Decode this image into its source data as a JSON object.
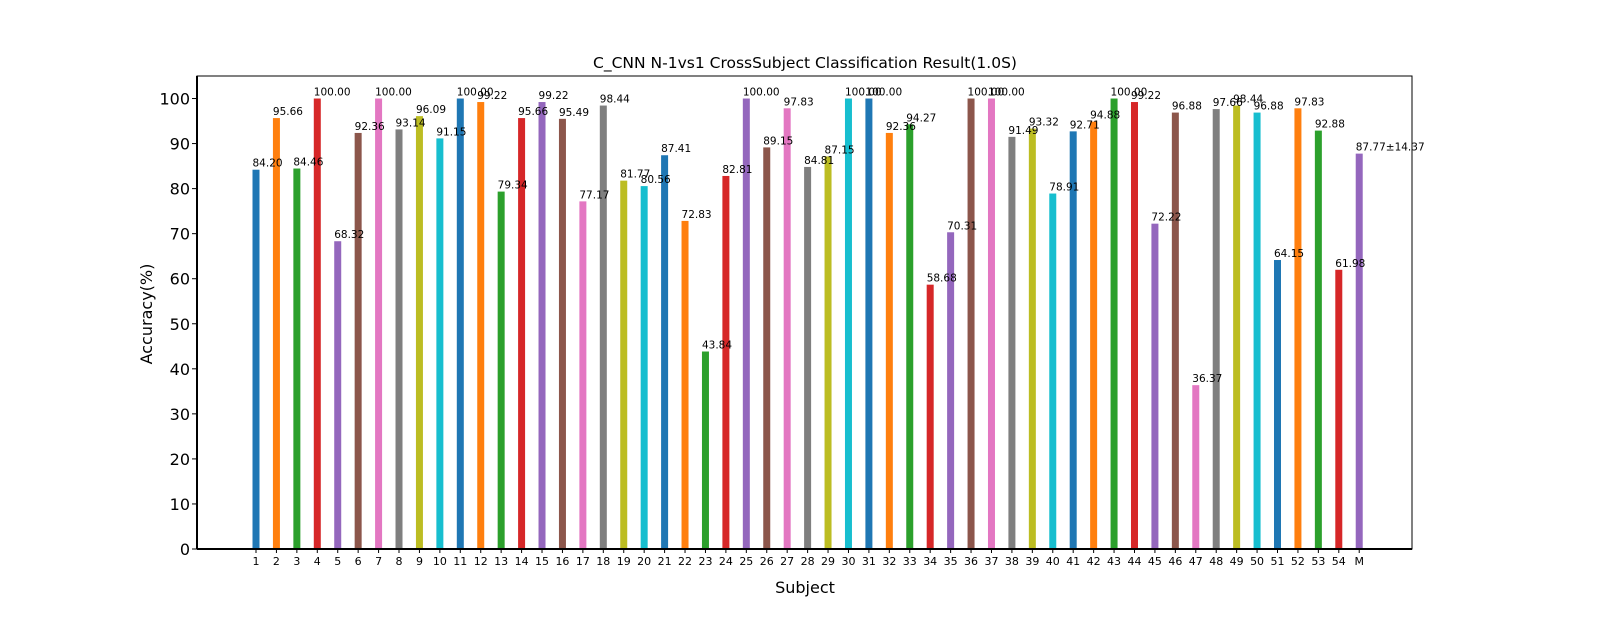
{
  "chart_data": {
    "type": "bar",
    "title": "C_CNN N-1vs1 CrossSubject Classification Result(1.0S)",
    "xlabel": "Subject",
    "ylabel": "Accuracy(%)",
    "ylim": [
      0,
      105
    ],
    "yticks": [
      "0",
      "10",
      "20",
      "30",
      "40",
      "50",
      "60",
      "70",
      "80",
      "90",
      "100"
    ],
    "grid": false,
    "categories": [
      "1",
      "2",
      "3",
      "4",
      "5",
      "6",
      "7",
      "8",
      "9",
      "10",
      "11",
      "12",
      "13",
      "14",
      "15",
      "16",
      "17",
      "18",
      "19",
      "20",
      "21",
      "22",
      "23",
      "24",
      "25",
      "26",
      "27",
      "28",
      "29",
      "30",
      "31",
      "32",
      "33",
      "34",
      "35",
      "36",
      "37",
      "38",
      "39",
      "40",
      "41",
      "42",
      "43",
      "44",
      "45",
      "46",
      "47",
      "48",
      "49",
      "50",
      "51",
      "52",
      "53",
      "54",
      "M"
    ],
    "values": [
      84.2,
      95.66,
      84.46,
      100.0,
      68.32,
      92.36,
      100.0,
      93.14,
      96.09,
      91.15,
      100.0,
      99.22,
      79.34,
      95.66,
      99.22,
      95.49,
      77.17,
      98.44,
      81.77,
      80.56,
      87.41,
      72.83,
      43.84,
      82.81,
      100.0,
      89.15,
      97.83,
      84.81,
      87.15,
      100.0,
      100.0,
      92.36,
      94.27,
      58.68,
      70.31,
      100.0,
      100.0,
      91.49,
      93.32,
      78.91,
      92.71,
      94.88,
      100.0,
      99.22,
      72.22,
      96.88,
      36.37,
      97.66,
      98.44,
      96.88,
      64.15,
      97.83,
      92.88,
      61.98,
      87.77
    ],
    "data_labels": [
      "84.20",
      "95.66",
      "84.46",
      "100.00",
      "68.32",
      "92.36",
      "100.00",
      "93.14",
      "96.09",
      "91.15",
      "100.00",
      "99.22",
      "79.34",
      "95.66",
      "99.22",
      "95.49",
      "77.17",
      "98.44",
      "81.77",
      "80.56",
      "87.41",
      "72.83",
      "43.84",
      "82.81",
      "100.00",
      "89.15",
      "97.83",
      "84.81",
      "87.15",
      "100.00",
      "100.00",
      "92.36",
      "94.27",
      "58.68",
      "70.31",
      "100.00",
      "100.00",
      "91.49",
      "93.32",
      "78.91",
      "92.71",
      "94.88",
      "100.00",
      "99.22",
      "72.22",
      "96.88",
      "36.37",
      "97.66",
      "98.44",
      "96.88",
      "64.15",
      "97.83",
      "92.88",
      "61.98",
      "87.77±14.37"
    ],
    "colors": [
      "#1f77b4",
      "#ff7f0e",
      "#2ca02c",
      "#d62728",
      "#9467bd",
      "#8c564b",
      "#e377c2",
      "#7f7f7f",
      "#bcbd22",
      "#17becf"
    ],
    "mean_label_color": "#ff0000"
  }
}
